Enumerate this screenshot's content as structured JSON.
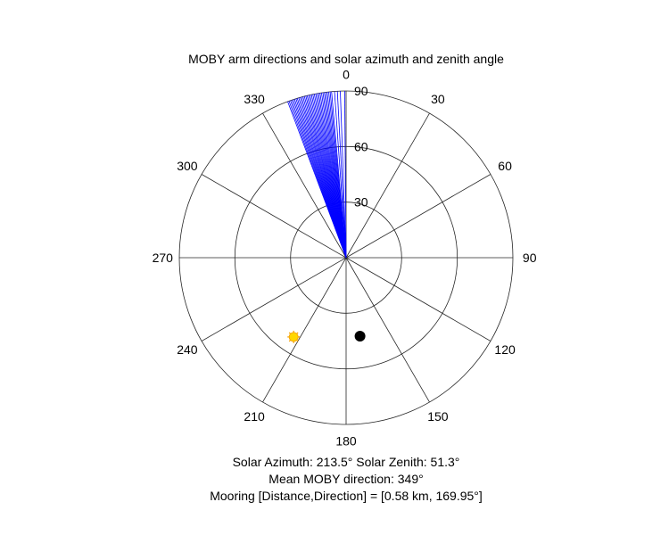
{
  "chart_data": {
    "type": "polar",
    "title": "MOBY arm directions and solar azimuth and zenith angle",
    "theta_zero": "top",
    "theta_direction": "clockwise",
    "theta_ticks": [
      "0",
      "30",
      "60",
      "90",
      "120",
      "150",
      "180",
      "210",
      "240",
      "270",
      "300",
      "330"
    ],
    "r_range": [
      0,
      90
    ],
    "r_ticks": [
      "30",
      "60",
      "90"
    ],
    "grid": true,
    "colors": {
      "arms": "#0000ff",
      "sun": "#ffd700",
      "sun_edge": "#f5a000",
      "mooring": "#000000",
      "grid": "#262626"
    },
    "series": [
      {
        "marker": "line",
        "color": "#0000ff",
        "theta_deg": [
          339.5,
          340.0,
          340.5,
          341.0,
          341.5,
          342.0,
          342.5,
          343.0,
          343.5,
          344.0,
          344.5,
          345.0,
          345.5,
          346.0,
          346.5,
          347.0,
          347.5,
          348.0,
          348.5,
          349.0,
          349.5,
          350.0,
          350.5,
          351.0,
          351.5,
          352.0,
          352.5,
          353.0,
          353.5,
          354.0,
          354.5,
          355.0,
          356.0,
          357.0,
          358.0,
          359.5
        ],
        "r": 90
      },
      {
        "marker": "sun",
        "color": "#ffd700",
        "theta_deg": 213.5,
        "r": 51.3
      },
      {
        "marker": "dot",
        "color": "#000000",
        "theta_deg": 169.95,
        "r": 43
      }
    ]
  },
  "captions": {
    "solar": "Solar Azimuth: 213.5°    Solar Zenith: 51.3°",
    "moby": "Mean MOBY direction: 349°",
    "mooring": "Mooring [Distance,Direction] = [0.58 km, 169.95°]"
  }
}
